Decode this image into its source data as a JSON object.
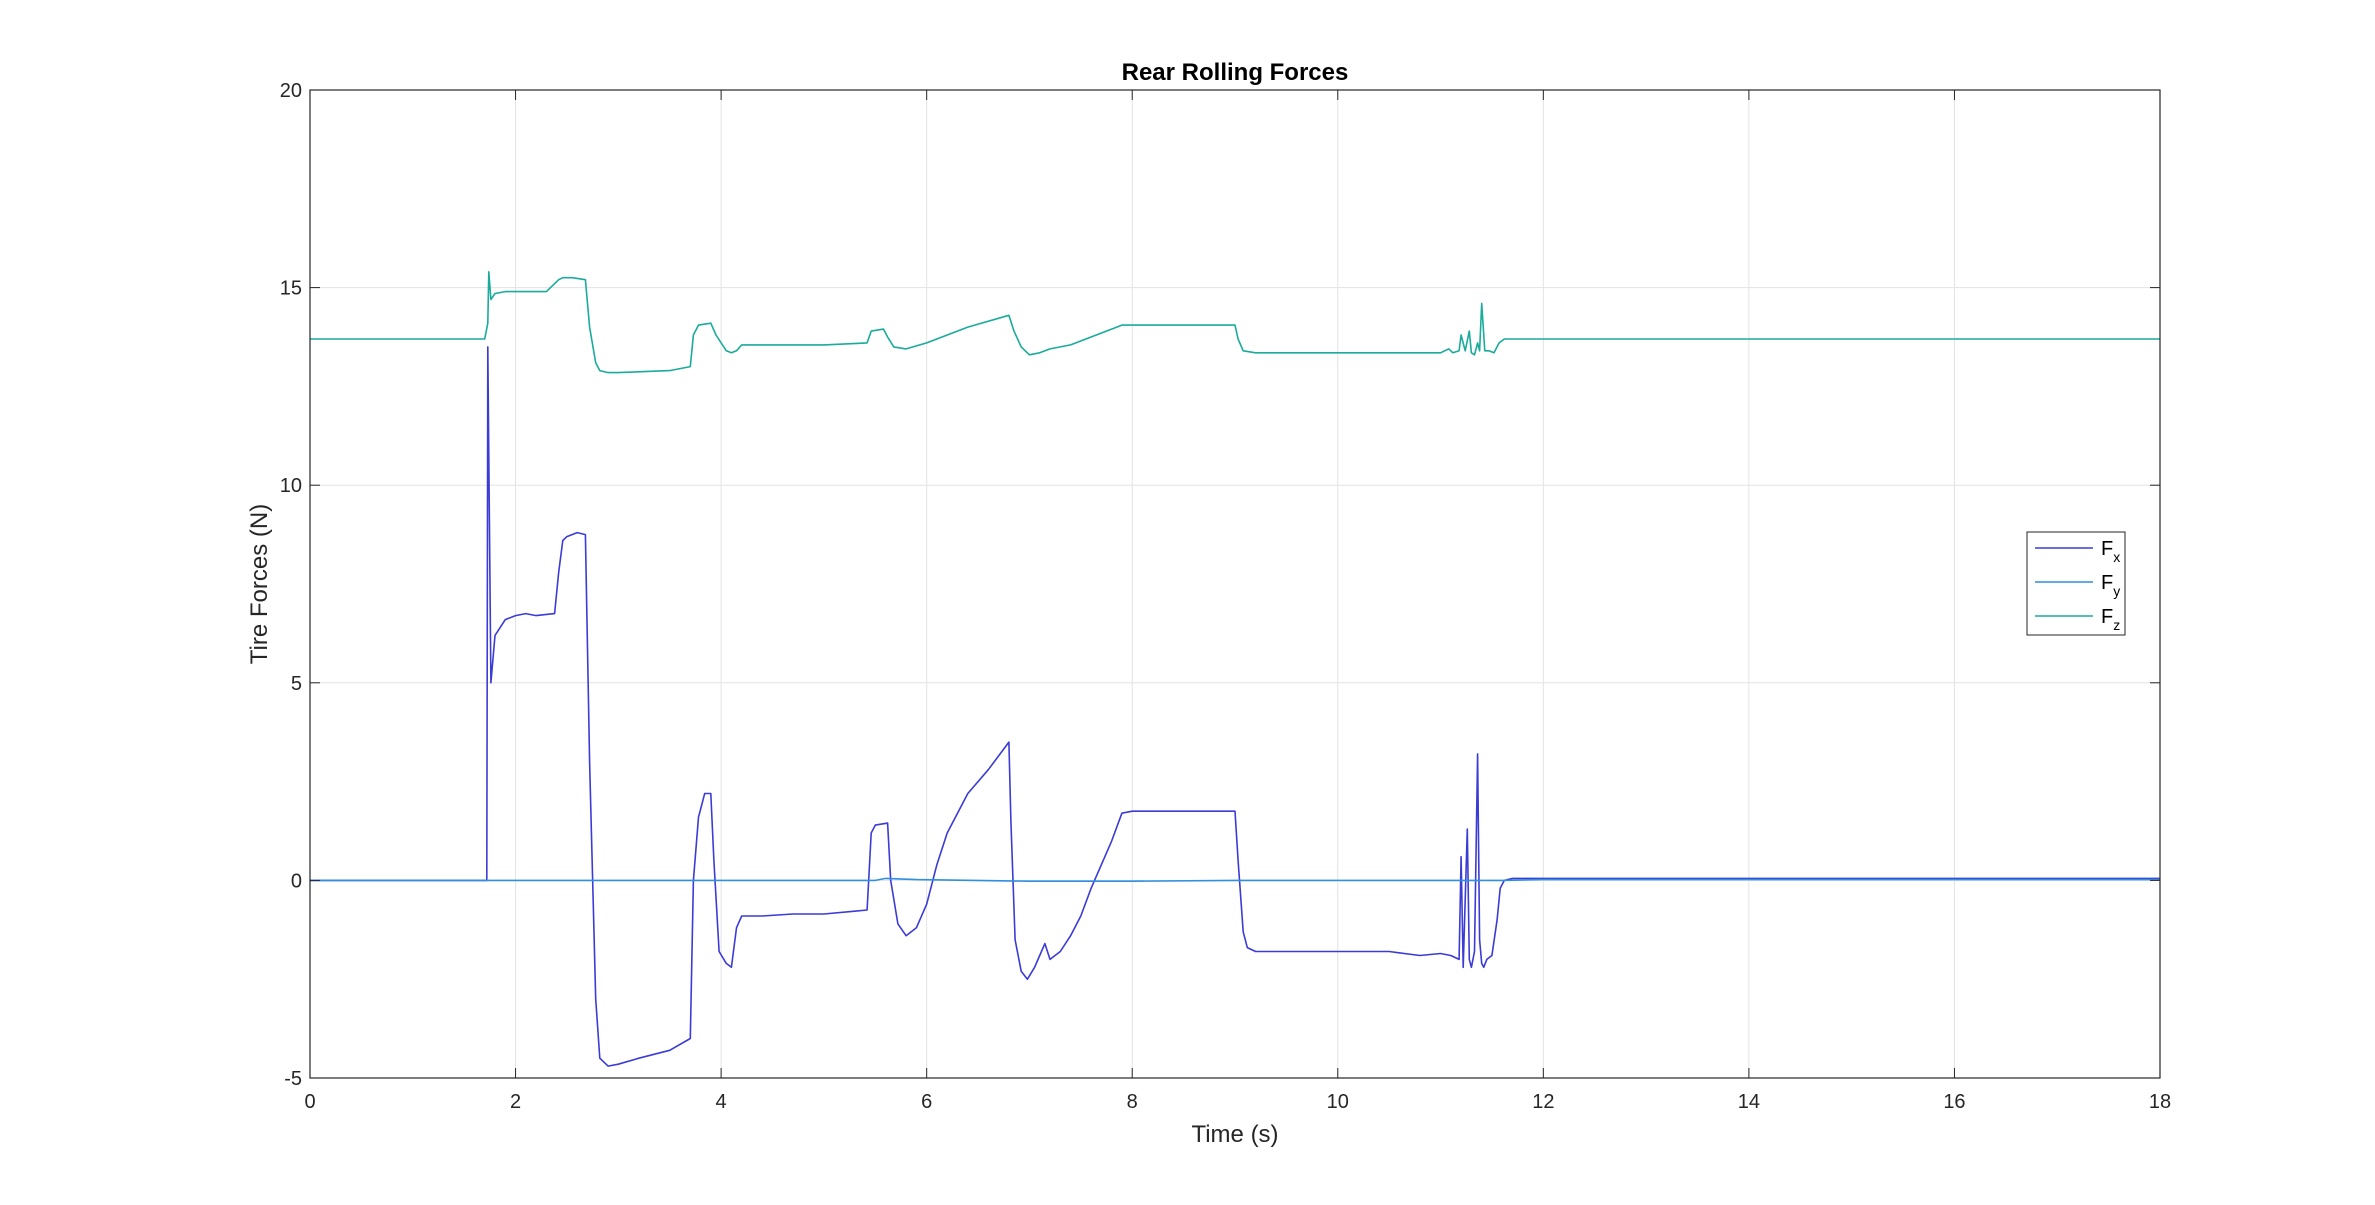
{
  "chart_data": {
    "type": "line",
    "title": "Rear Rolling Forces",
    "xlabel": "Time (s)",
    "ylabel": "Tire Forces (N)",
    "xlim": [
      0,
      18
    ],
    "ylim": [
      -5,
      20
    ],
    "xticks": [
      0,
      2,
      4,
      6,
      8,
      10,
      12,
      14,
      16,
      18
    ],
    "yticks": [
      -5,
      0,
      5,
      10,
      15,
      20
    ],
    "grid": true,
    "legend_position": "right",
    "legend": [
      {
        "base": "F",
        "sub": "x"
      },
      {
        "base": "F",
        "sub": "y"
      },
      {
        "base": "F",
        "sub": "z"
      }
    ],
    "series": [
      {
        "name": "Fx",
        "color": "#3b3bd6",
        "x": [
          0,
          1.72,
          1.73,
          1.76,
          1.8,
          1.9,
          2.0,
          2.1,
          2.2,
          2.38,
          2.42,
          2.46,
          2.5,
          2.6,
          2.68,
          2.72,
          2.78,
          2.82,
          2.9,
          3.0,
          3.2,
          3.5,
          3.7,
          3.73,
          3.78,
          3.84,
          3.9,
          3.93,
          3.98,
          4.05,
          4.1,
          4.15,
          4.2,
          4.4,
          4.7,
          5.0,
          5.3,
          5.42,
          5.46,
          5.5,
          5.62,
          5.65,
          5.72,
          5.8,
          5.9,
          6.0,
          6.1,
          6.2,
          6.4,
          6.6,
          6.8,
          6.82,
          6.86,
          6.92,
          6.98,
          7.05,
          7.1,
          7.15,
          7.2,
          7.3,
          7.4,
          7.5,
          7.6,
          7.8,
          7.9,
          8.0,
          8.5,
          9.0,
          9.03,
          9.08,
          9.12,
          9.2,
          9.5,
          10.0,
          10.5,
          10.8,
          11.0,
          11.1,
          11.18,
          11.2,
          11.22,
          11.26,
          11.28,
          11.3,
          11.33,
          11.36,
          11.38,
          11.4,
          11.42,
          11.45,
          11.5,
          11.55,
          11.58,
          11.62,
          11.7,
          12.0,
          14.0,
          16.0,
          18.0
        ],
        "y": [
          0,
          0,
          13.5,
          5.0,
          6.2,
          6.6,
          6.7,
          6.75,
          6.7,
          6.75,
          7.8,
          8.6,
          8.7,
          8.8,
          8.75,
          3.0,
          -3.0,
          -4.5,
          -4.7,
          -4.65,
          -4.5,
          -4.3,
          -4.0,
          0.0,
          1.6,
          2.2,
          2.2,
          0.5,
          -1.8,
          -2.1,
          -2.2,
          -1.2,
          -0.9,
          -0.9,
          -0.85,
          -0.85,
          -0.78,
          -0.75,
          1.2,
          1.4,
          1.45,
          0.0,
          -1.1,
          -1.4,
          -1.2,
          -0.6,
          0.4,
          1.2,
          2.2,
          2.8,
          3.5,
          1.5,
          -1.5,
          -2.3,
          -2.5,
          -2.2,
          -1.9,
          -1.6,
          -2.0,
          -1.8,
          -1.4,
          -0.9,
          -0.2,
          1.0,
          1.7,
          1.75,
          1.75,
          1.75,
          0.5,
          -1.3,
          -1.7,
          -1.8,
          -1.8,
          -1.8,
          -1.8,
          -1.9,
          -1.85,
          -1.9,
          -2.0,
          0.6,
          -2.2,
          1.3,
          -2.0,
          -2.2,
          -1.8,
          3.2,
          -1.5,
          -2.1,
          -2.2,
          -2.0,
          -1.9,
          -1.0,
          -0.2,
          0.0,
          0.05,
          0.05,
          0.05,
          0.05,
          0.05
        ]
      },
      {
        "name": "Fy",
        "color": "#2f8fe0",
        "x": [
          0,
          3.0,
          5.5,
          5.6,
          5.9,
          7.0,
          8.0,
          9.0,
          10.0,
          11.0,
          11.6,
          12.0,
          14.0,
          16.0,
          18.0
        ],
        "y": [
          0,
          0,
          0,
          0.05,
          0.02,
          -0.02,
          -0.02,
          0,
          0,
          0,
          0,
          0.02,
          0.02,
          0.02,
          0.02
        ]
      },
      {
        "name": "Fz",
        "color": "#1aab9b",
        "x": [
          0,
          1.7,
          1.73,
          1.74,
          1.76,
          1.8,
          1.9,
          2.0,
          2.3,
          2.42,
          2.46,
          2.55,
          2.68,
          2.72,
          2.78,
          2.82,
          2.9,
          3.0,
          3.5,
          3.7,
          3.73,
          3.78,
          3.9,
          3.95,
          4.05,
          4.1,
          4.15,
          4.2,
          4.5,
          5.0,
          5.42,
          5.46,
          5.58,
          5.62,
          5.68,
          5.8,
          6.0,
          6.4,
          6.8,
          6.85,
          6.92,
          7.0,
          7.1,
          7.2,
          7.4,
          7.6,
          7.85,
          7.9,
          8.5,
          9.0,
          9.03,
          9.08,
          9.2,
          10.0,
          10.5,
          11.0,
          11.08,
          11.12,
          11.18,
          11.2,
          11.24,
          11.28,
          11.3,
          11.33,
          11.36,
          11.38,
          11.4,
          11.43,
          11.47,
          11.52,
          11.57,
          11.62,
          11.7,
          12.0,
          14.0,
          16.0,
          18.0
        ],
        "y": [
          13.7,
          13.7,
          14.1,
          15.4,
          14.7,
          14.85,
          14.9,
          14.9,
          14.9,
          15.2,
          15.25,
          15.25,
          15.2,
          14.0,
          13.1,
          12.9,
          12.85,
          12.85,
          12.9,
          13.0,
          13.8,
          14.05,
          14.1,
          13.8,
          13.4,
          13.35,
          13.4,
          13.55,
          13.55,
          13.55,
          13.6,
          13.9,
          13.95,
          13.75,
          13.5,
          13.45,
          13.6,
          14.0,
          14.3,
          13.9,
          13.5,
          13.3,
          13.35,
          13.45,
          13.55,
          13.75,
          14.0,
          14.05,
          14.05,
          14.05,
          13.7,
          13.4,
          13.35,
          13.35,
          13.35,
          13.35,
          13.45,
          13.35,
          13.4,
          13.8,
          13.4,
          13.9,
          13.35,
          13.3,
          13.6,
          13.4,
          14.6,
          13.4,
          13.4,
          13.35,
          13.6,
          13.7,
          13.7,
          13.7,
          13.7,
          13.7,
          13.7
        ]
      }
    ]
  }
}
